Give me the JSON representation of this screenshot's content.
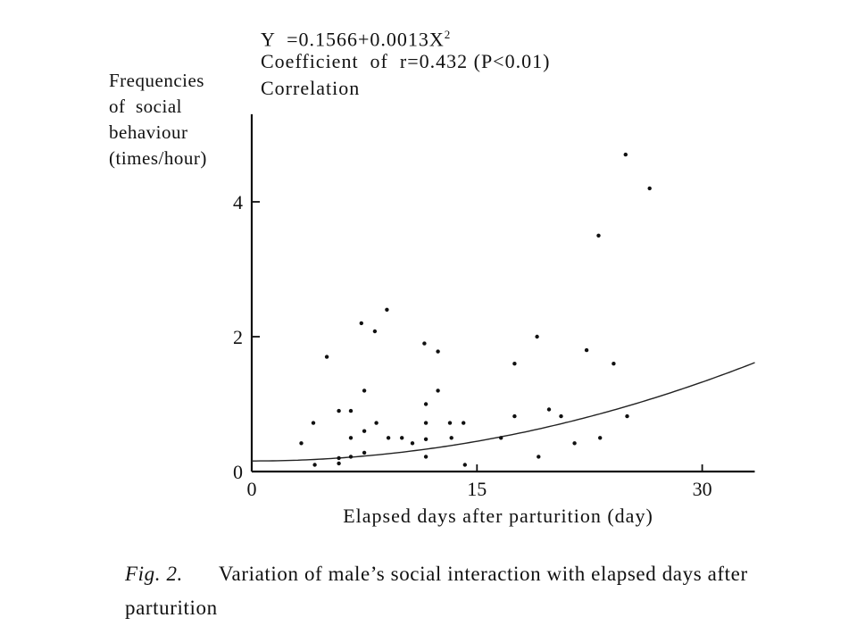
{
  "figure": {
    "equation_lines": [
      {
        "prefix": "Y  =0.1566+0.0013X",
        "sup": "2"
      },
      {
        "prefix": "Coefficient  of  r=0.432 (P<0.01)",
        "sup": ""
      },
      {
        "prefix": "Correlation",
        "sup": ""
      }
    ],
    "ylabel_lines": [
      "Frequencies",
      "of  social",
      "behaviour",
      "(times/hour)"
    ],
    "caption_label": "Fig. 2.",
    "caption_text": "Variation of male’s social interaction with elapsed days after parturition"
  },
  "chart_data": {
    "type": "scatter",
    "xlabel": "Elapsed days after parturition (day)",
    "ylabel": "Frequencies of social behaviour (times/hour)",
    "xlim": [
      0,
      33.5
    ],
    "ylim": [
      0,
      5.3
    ],
    "xticks": [
      0,
      15,
      30
    ],
    "xtick_labels": [
      "0",
      "15",
      "30"
    ],
    "yticks": [
      0,
      2,
      4
    ],
    "ytick_labels": [
      "0",
      "2",
      "4"
    ],
    "grid": false,
    "fit": {
      "intercept": 0.1566,
      "coef": 0.0013,
      "x_range": [
        0,
        33.5
      ]
    },
    "points": [
      [
        3.3,
        0.42
      ],
      [
        4.1,
        0.72
      ],
      [
        4.2,
        0.1
      ],
      [
        5,
        1.7
      ],
      [
        5.8,
        0.12
      ],
      [
        5.8,
        0.9
      ],
      [
        5.8,
        0.2
      ],
      [
        6.6,
        0.9
      ],
      [
        6.6,
        0.22
      ],
      [
        6.6,
        0.5
      ],
      [
        7.3,
        2.2
      ],
      [
        7.5,
        1.2
      ],
      [
        7.5,
        0.28
      ],
      [
        7.5,
        0.6
      ],
      [
        8.2,
        2.08
      ],
      [
        8.3,
        0.72
      ],
      [
        9,
        2.4
      ],
      [
        9.1,
        0.5
      ],
      [
        10,
        0.5
      ],
      [
        10.7,
        0.42
      ],
      [
        11.5,
        1.9
      ],
      [
        11.6,
        1.0
      ],
      [
        11.6,
        0.72
      ],
      [
        11.6,
        0.22
      ],
      [
        11.6,
        0.48
      ],
      [
        12.4,
        1.78
      ],
      [
        12.4,
        1.2
      ],
      [
        13.2,
        0.72
      ],
      [
        13.3,
        0.5
      ],
      [
        14.1,
        0.72
      ],
      [
        14.2,
        0.1
      ],
      [
        16.6,
        0.5
      ],
      [
        17.5,
        1.6
      ],
      [
        17.5,
        0.82
      ],
      [
        19,
        2.0
      ],
      [
        19.1,
        0.22
      ],
      [
        19.8,
        0.92
      ],
      [
        20.6,
        0.82
      ],
      [
        21.5,
        0.42
      ],
      [
        22.3,
        1.8
      ],
      [
        23.1,
        3.5
      ],
      [
        23.2,
        0.5
      ],
      [
        24.1,
        1.6
      ],
      [
        24.9,
        4.7
      ],
      [
        25,
        0.82
      ],
      [
        26.5,
        4.2
      ]
    ]
  }
}
